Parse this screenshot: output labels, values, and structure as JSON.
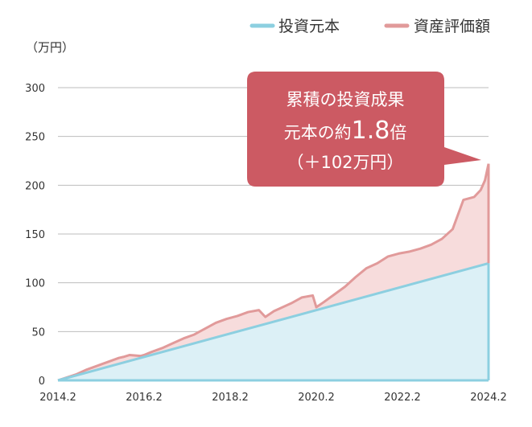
{
  "chart_data": {
    "type": "area",
    "unit_label": "（万円）",
    "xlabel": "",
    "ylabel": "",
    "ylim": [
      0,
      300
    ],
    "y_ticks": [
      "0",
      "50",
      "100",
      "150",
      "200",
      "250",
      "300"
    ],
    "x_ticks": [
      "2014.2",
      "2016.2",
      "2018.2",
      "2020.2",
      "2022.2",
      "2024.2"
    ],
    "xlim": [
      2014.083,
      2024.083
    ],
    "grid": true,
    "legend_position": "top-right",
    "series": [
      {
        "name": "投資元本",
        "color": "#8ccfe0",
        "fill": "#dcf0f6",
        "x": [
          2014.083,
          2024.083
        ],
        "values": [
          0,
          120
        ]
      },
      {
        "name": "資産評価額",
        "color": "#e19a9a",
        "fill": "#f7dcdc",
        "x": [
          2014.083,
          2014.5,
          2014.75,
          2015.0,
          2015.25,
          2015.5,
          2015.6,
          2015.75,
          2016.0,
          2016.083,
          2016.25,
          2016.5,
          2016.75,
          2017.0,
          2017.25,
          2017.5,
          2017.75,
          2018.0,
          2018.25,
          2018.5,
          2018.75,
          2018.9,
          2019.0,
          2019.1,
          2019.25,
          2019.5,
          2019.75,
          2020.0,
          2020.083,
          2020.25,
          2020.5,
          2020.75,
          2021.0,
          2021.25,
          2021.5,
          2021.75,
          2022.0,
          2022.25,
          2022.5,
          2022.75,
          2023.0,
          2023.25,
          2023.5,
          2023.75,
          2023.9,
          2024.0,
          2024.083
        ],
        "values": [
          0,
          6,
          11,
          15,
          19,
          23,
          24,
          26,
          25,
          26,
          29,
          33,
          38,
          43,
          47,
          53,
          59,
          63,
          66,
          70,
          72,
          65,
          68,
          71,
          74,
          79,
          85,
          87,
          75,
          80,
          88,
          96,
          106,
          115,
          120,
          127,
          130,
          132,
          135,
          139,
          145,
          155,
          185,
          188,
          195,
          205,
          222
        ]
      }
    ],
    "annotation": {
      "line1": "累積の投資成果",
      "line2_prefix": "元本の約",
      "line2_value": "1.8",
      "line2_suffix": "倍",
      "line3": "（＋102万円）",
      "color": "#cc5a63"
    }
  }
}
